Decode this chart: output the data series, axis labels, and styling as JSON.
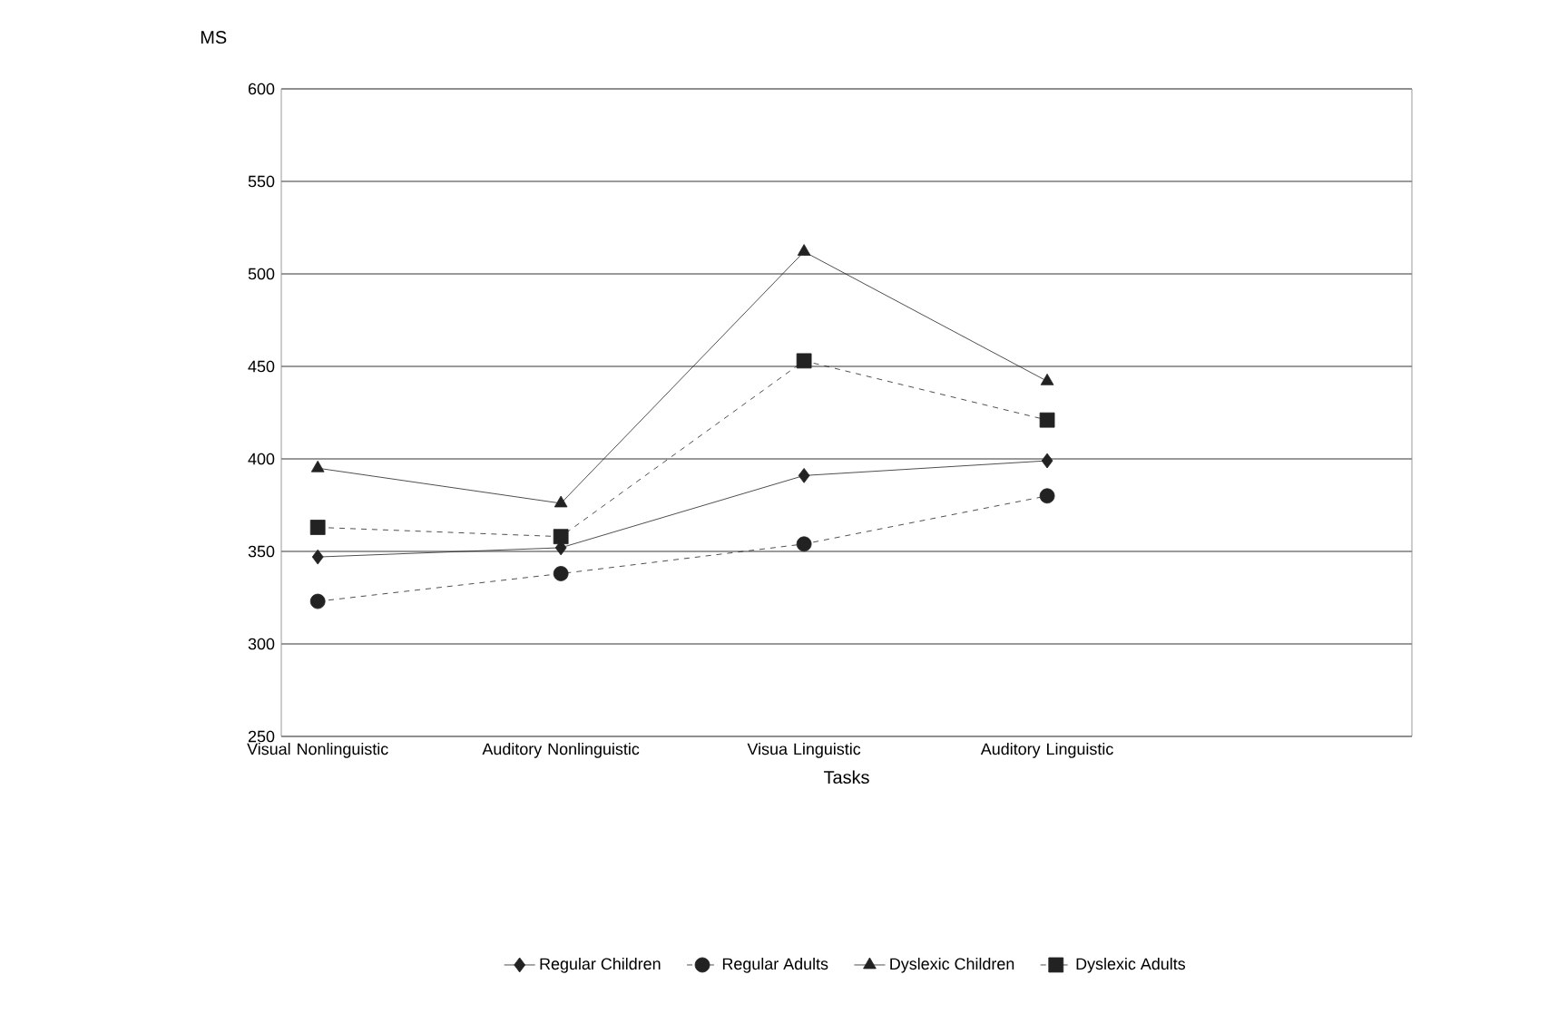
{
  "chart_data": {
    "type": "line",
    "xlabel": "Tasks",
    "ylabel": "MS",
    "categories": [
      "Visual Nonlinguistic",
      "Auditory Nonlinguistic",
      "Visua Linguistic",
      "Auditory Linguistic"
    ],
    "series": [
      {
        "name": "Regular Children",
        "color": "#222222",
        "marker": "diamond",
        "line_style": "solid",
        "values": [
          347,
          352,
          391,
          399
        ]
      },
      {
        "name": "Regular Adults",
        "color": "#222222",
        "marker": "circle",
        "line_style": "dashed",
        "values": [
          323,
          338,
          354,
          380
        ]
      },
      {
        "name": "Dyslexic Children",
        "color": "#222222",
        "marker": "triangle",
        "line_style": "solid",
        "values": [
          395,
          376,
          512,
          442
        ]
      },
      {
        "name": "Dyslexic Adults",
        "color": "#222222",
        "marker": "square",
        "line_style": "dashed",
        "values": [
          363,
          358,
          453,
          421
        ]
      }
    ],
    "ylim": [
      250,
      600
    ],
    "yticks": [
      250,
      300,
      350,
      400,
      450,
      500,
      550,
      600
    ],
    "grid": "y",
    "legend": "bottom"
  }
}
